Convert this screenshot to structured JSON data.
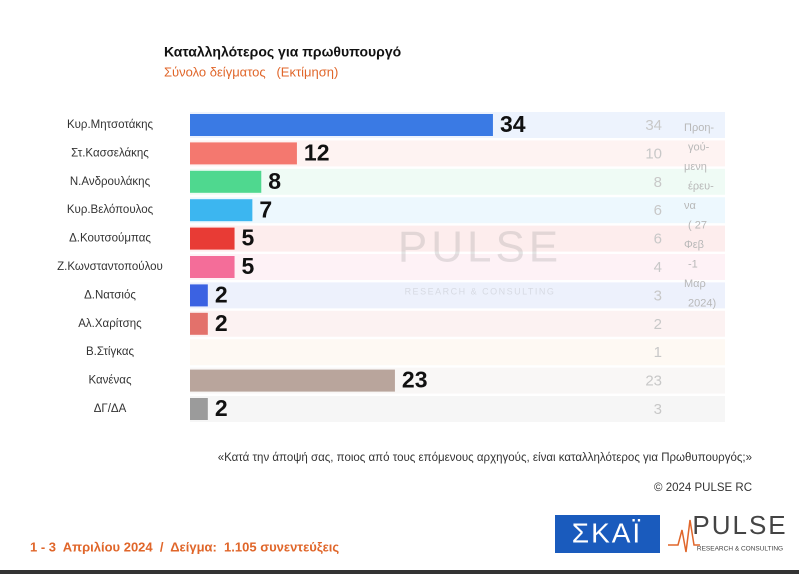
{
  "chart_data": {
    "type": "bar",
    "title": "Καταλληλότερος για πρωθυπουργό",
    "subtitle": "Σύνολο δείγματος   (Εκτίμηση)",
    "categories": [
      "Κυρ.Μητσοτάκης",
      "Στ.Κασσελάκης",
      "Ν.Ανδρουλάκης",
      "Κυρ.Βελόπουλος",
      "Δ.Κουτσούμπας",
      "Ζ.Κωνσταντοπούλου",
      "Δ.Νατσιός",
      "Αλ.Χαρίτσης",
      "Β.Στίγκας",
      "Κανένας",
      "ΔΓ/ΔΑ"
    ],
    "values": [
      34,
      12,
      8,
      7,
      5,
      5,
      2,
      2,
      null,
      23,
      2
    ],
    "colors": [
      "#3a7ae4",
      "#f4786f",
      "#4fd88f",
      "#3cb6f0",
      "#e83b35",
      "#f46d99",
      "#3b62e2",
      "#e3716b",
      "#f3c17a",
      "#b9a59c",
      "#9b9b9b"
    ],
    "previous_values": [
      34,
      10,
      8,
      6,
      6,
      4,
      3,
      2,
      1,
      23,
      3
    ],
    "previous_label": [
      "Προη-",
      "γού-",
      "μενη",
      "έρευ-",
      "να",
      "( 27",
      "Φεβ",
      "-1",
      "Μαρ",
      "2024)"
    ],
    "question": "«Κατά την άποψή σας, ποιος από τους επόμενους αρχηγούς, είναι καταλληλότερος για Πρωθυπουργός;»",
    "copyright": "© 2024 PULSE RC"
  },
  "footer": "1 - 3  Απριλίου 2024  /  Δείγμα:  1.105 συνεντεύξεις",
  "logos": {
    "skai": "ΣΚΑΪ",
    "pulse": "PULSE",
    "pulse_sub": "RESEARCH & CONSULTING"
  }
}
